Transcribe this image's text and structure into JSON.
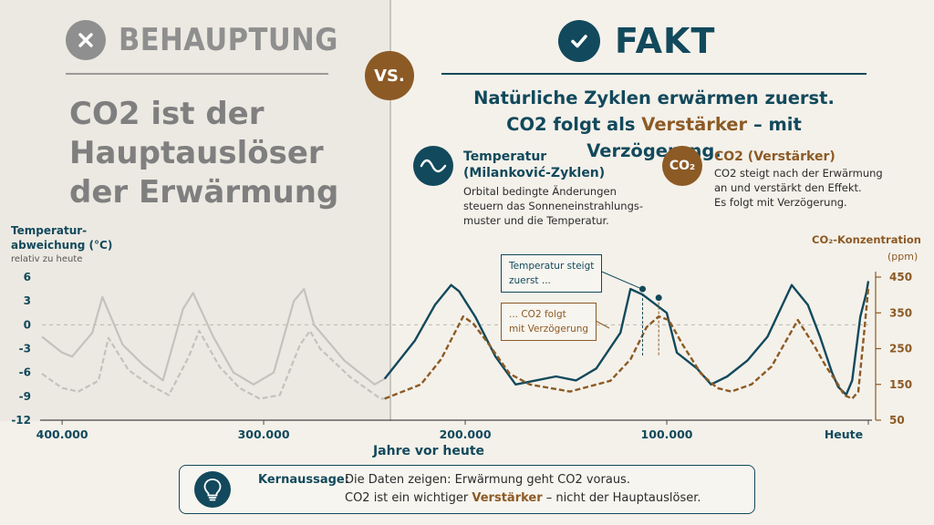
{
  "claim": {
    "label": "BEHAUPTUNG",
    "text": "CO2 ist der Hauptauslöser der Erwärmung"
  },
  "vs_label": "VS.",
  "fact": {
    "label": "FAKT",
    "line1": "Natürliche Zyklen erwärmen zuerst.",
    "line2_pre": "CO2 folgt als ",
    "line2_accent": "Verstärker",
    "line2_post": " – mit Verzögerung."
  },
  "info": {
    "temperature": {
      "title_line1": "Temperatur",
      "title_line2": "(Milanković-Zyklen)",
      "desc_line1": "Orbital bedingte Änderungen",
      "desc_line2": "steuern das Sonneneinstrahlungs-",
      "desc_line3": "muster und die Temperatur."
    },
    "co2": {
      "icon_text": "CO₂",
      "title": "CO2 (Verstärker)",
      "desc_line1": "CO2 steigt nach der Erwärmung",
      "desc_line2": "an und verstärkt den Effekt.",
      "desc_line3": "Es folgt mit Verzögerung."
    }
  },
  "chart_data": {
    "type": "line",
    "ylabel_line1": "Temperatur-",
    "ylabel_line2": "abweichung (°C)",
    "ylabel_sub": "relativ zu heute",
    "ylabel_right": "CO₂-Konzentration",
    "ylabel_right_unit": "(ppm)",
    "xlabel": "Jahre vor heute",
    "x_axis": "Jahre vor heute (abnehmend nach rechts)",
    "x_range": [
      410000,
      0
    ],
    "ylim_left": [
      -12,
      6
    ],
    "ylim_right": [
      50,
      450
    ],
    "left_ticks": [
      6,
      3,
      0,
      -3,
      -6,
      -9,
      -12
    ],
    "right_ticks": [
      450,
      350,
      250,
      150,
      50
    ],
    "x_ticks": [
      {
        "value": 400000,
        "label": "400.000"
      },
      {
        "value": 300000,
        "label": "300.000"
      },
      {
        "value": 200000,
        "label": "200.000"
      },
      {
        "value": 100000,
        "label": "100.000"
      },
      {
        "value": 0,
        "label": "Heute"
      }
    ],
    "faded_before": 240000,
    "series": [
      {
        "name": "Temperatur",
        "axis": "left",
        "color": "#12495c",
        "style": "solid",
        "x": [
          410000,
          400000,
          395000,
          385000,
          380000,
          370000,
          360000,
          350000,
          340000,
          335000,
          325000,
          315000,
          305000,
          295000,
          285000,
          280000,
          275000,
          260000,
          250000,
          245000,
          240000,
          225000,
          215000,
          207000,
          203000,
          195000,
          185000,
          175000,
          165000,
          155000,
          145000,
          135000,
          123000,
          118000,
          112000,
          100000,
          95000,
          85000,
          78000,
          70000,
          60000,
          50000,
          38000,
          30000,
          24000,
          18000,
          15000,
          11000,
          8000,
          4000,
          1000,
          0
        ],
        "y": [
          -1.5,
          -3.5,
          -4,
          -1,
          3.5,
          -2.5,
          -5,
          -7,
          2,
          4,
          -1.5,
          -6,
          -7.5,
          -6,
          3,
          4.5,
          0,
          -4.5,
          -6.5,
          -7.5,
          -6.8,
          -2,
          2.5,
          5,
          4.2,
          1,
          -4,
          -7.5,
          -7,
          -6.5,
          -7,
          -5.5,
          -1,
          4.5,
          3.8,
          1.5,
          -3.5,
          -5.5,
          -7.5,
          -6.5,
          -4.5,
          -1.5,
          5,
          2.5,
          -1.5,
          -6,
          -7.8,
          -8.8,
          -7,
          1,
          4,
          5.5
        ]
      },
      {
        "name": "CO2 (Verstärker)",
        "axis": "right",
        "color": "#8c5a25",
        "style": "dashed",
        "x": [
          410000,
          400000,
          392000,
          382000,
          377000,
          367000,
          357000,
          347000,
          337000,
          332000,
          322000,
          312000,
          302000,
          292000,
          282000,
          277000,
          272000,
          257000,
          247000,
          242000,
          240000,
          222000,
          212000,
          201000,
          196000,
          188000,
          178000,
          168000,
          158000,
          148000,
          138000,
          128000,
          118000,
          110000,
          104000,
          99000,
          92000,
          83000,
          75000,
          68000,
          58000,
          48000,
          35000,
          27000,
          21000,
          15000,
          12000,
          8000,
          5000,
          2000,
          0
        ],
        "y": [
          180,
          140,
          130,
          160,
          280,
          190,
          150,
          120,
          230,
          300,
          200,
          140,
          110,
          120,
          260,
          300,
          250,
          170,
          130,
          110,
          110,
          150,
          220,
          340,
          320,
          260,
          180,
          150,
          140,
          130,
          145,
          160,
          220,
          310,
          340,
          330,
          260,
          180,
          140,
          130,
          150,
          200,
          330,
          260,
          200,
          150,
          120,
          110,
          130,
          300,
          420
        ]
      }
    ],
    "annotations": [
      {
        "text_line1": "Temperatur steigt",
        "text_line2": "zuerst ...",
        "target_x": 112000
      },
      {
        "text_line1": "... CO2 folgt",
        "text_line2": "mit Verzögerung",
        "target_x": 104000
      }
    ]
  },
  "key": {
    "label": "Kernaussage:",
    "line1": "Die Daten zeigen: Erwärmung geht CO2 voraus.",
    "line2_pre": "CO2 ist ein wichtiger ",
    "line2_accent": "Verstärker",
    "line2_post": " – nicht der Hauptauslöser."
  },
  "colors": {
    "primary": "#12495c",
    "accent": "#8c5a25",
    "muted": "#8f8f8f",
    "faded_line": "#c4c2bd"
  }
}
